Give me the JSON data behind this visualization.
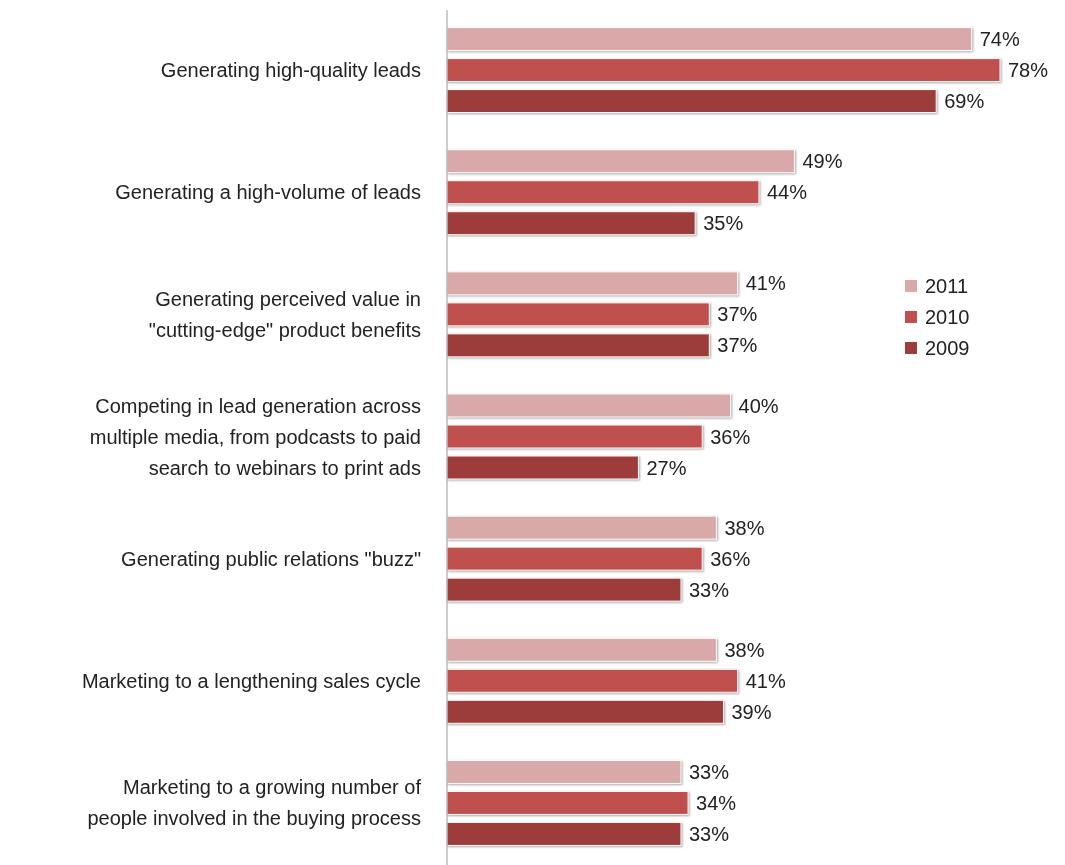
{
  "chart_data": {
    "type": "bar",
    "orientation": "horizontal",
    "categories": [
      "Generating high-quality leads",
      "Generating a high-volume of leads",
      "Generating perceived value in \"cutting-edge\" product benefits",
      "Competing in lead generation across multiple media, from podcasts to paid search to webinars to print ads",
      "Generating public relations \"buzz\"",
      "Marketing to a lengthening sales cycle",
      "Marketing to a growing number of people involved in the buying process"
    ],
    "series": [
      {
        "name": "2011",
        "color": "#d9a9aa",
        "values": [
          74,
          49,
          41,
          40,
          38,
          38,
          33
        ],
        "value_labels": [
          "74%",
          "49%",
          "41%",
          "40%",
          "38%",
          "38%",
          "33%"
        ]
      },
      {
        "name": "2010",
        "color": "#c0504d",
        "values": [
          78,
          44,
          37,
          36,
          36,
          41,
          34
        ],
        "value_labels": [
          "78%",
          "44%",
          "37%",
          "36%",
          "36%",
          "41%",
          "34%"
        ]
      },
      {
        "name": "2009",
        "color": "#9c3d3b",
        "values": [
          69,
          35,
          37,
          27,
          33,
          39,
          33
        ],
        "value_labels": [
          "69%",
          "35%",
          "37%",
          "27%",
          "33%",
          "39%",
          "33%"
        ]
      }
    ],
    "legend": "right"
  }
}
